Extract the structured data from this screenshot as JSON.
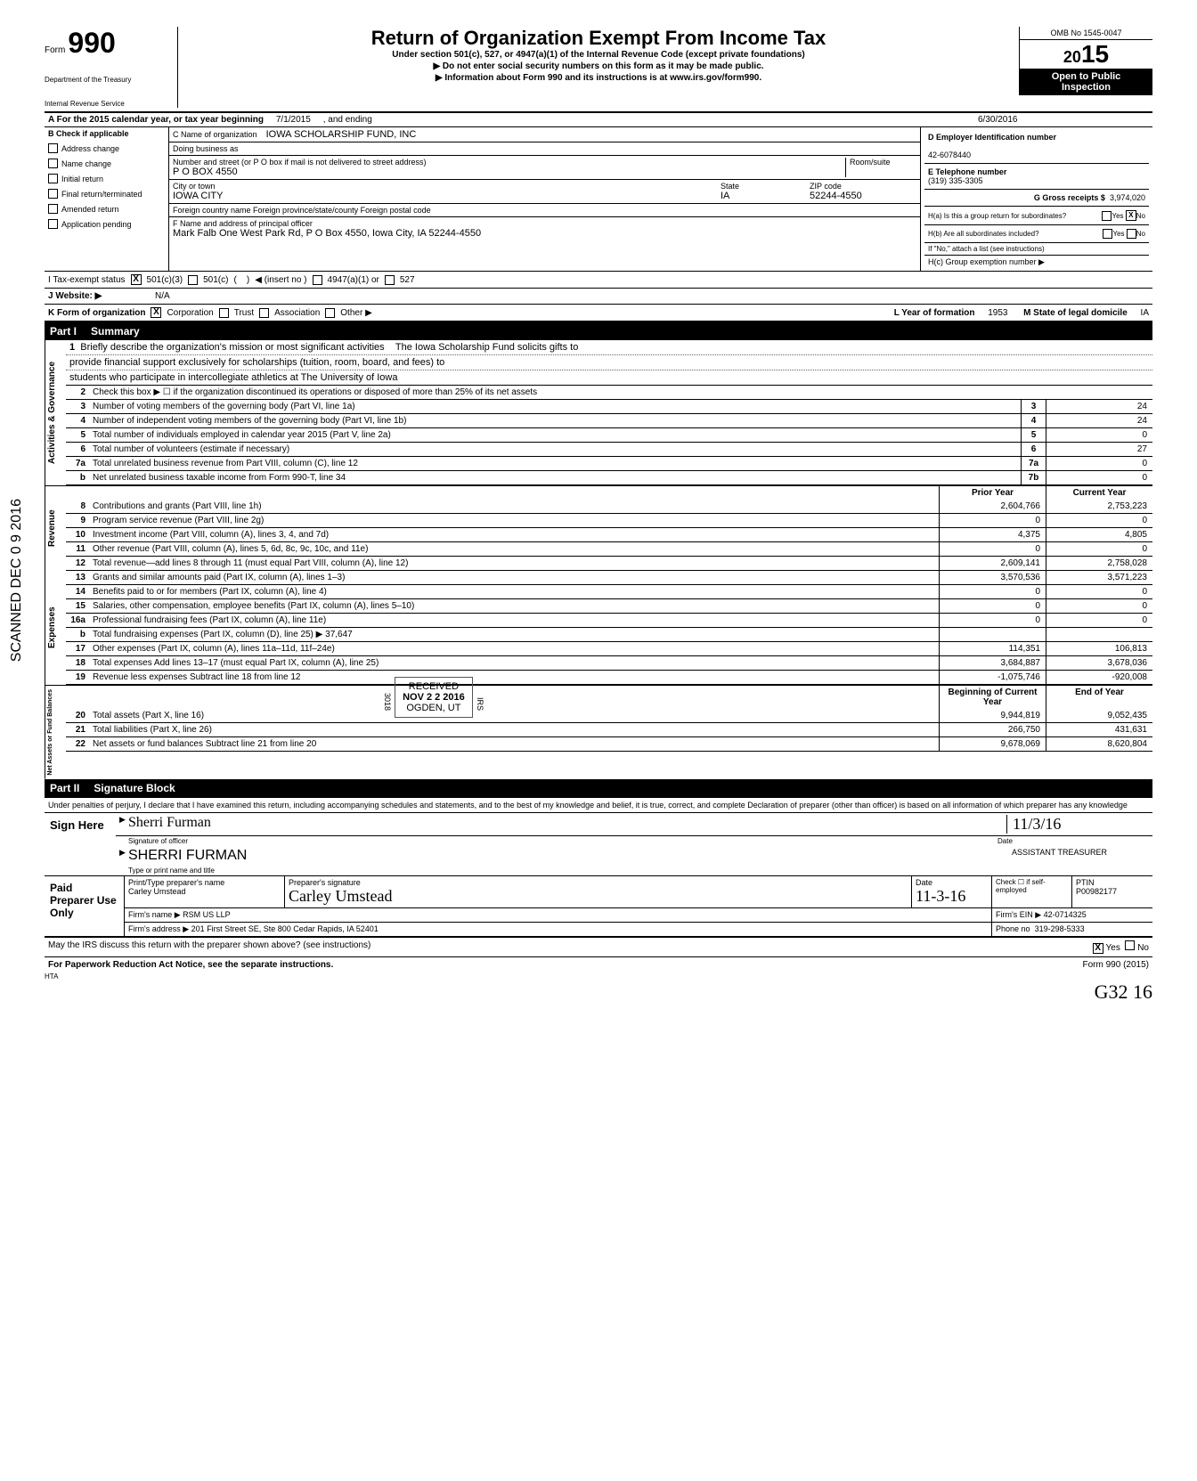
{
  "form": {
    "word": "Form",
    "number": "990",
    "dept1": "Department of the Treasury",
    "dept2": "Internal Revenue Service",
    "title": "Return of Organization Exempt From Income Tax",
    "subtitle": "Under section 501(c), 527, or 4947(a)(1) of the Internal Revenue Code (except private foundations)",
    "warn": "▶  Do not enter social security numbers on this form as it may be made public.",
    "info": "▶  Information about Form 990 and its instructions is at www.irs.gov/form990.",
    "omb": "OMB No 1545-0047",
    "year_prefix": "20",
    "year": "15",
    "open1": "Open to Public",
    "open2": "Inspection"
  },
  "rowA": {
    "label": "A   For the 2015 calendar year, or tax year beginning",
    "begin": "7/1/2015",
    "mid": ", and ending",
    "end": "6/30/2016"
  },
  "checks": {
    "header": "B   Check if applicable",
    "items": [
      "Address change",
      "Name change",
      "Initial return",
      "Final return/terminated",
      "Amended return",
      "Application pending"
    ]
  },
  "org": {
    "c_label": "C  Name of organization",
    "name": "IOWA SCHOLARSHIP FUND, INC",
    "dba_label": "Doing business as",
    "street_label": "Number and street (or P O  box if mail is not delivered to street address)",
    "room_label": "Room/suite",
    "street": "P O  BOX 4550",
    "city_label": "City or town",
    "city": "IOWA CITY",
    "state_label": "State",
    "state": "IA",
    "zip_label": "ZIP code",
    "zip": "52244-4550",
    "foreign_label": "Foreign country name          Foreign province/state/county          Foreign postal code",
    "f_label": "F  Name and address of principal officer",
    "f_value": "Mark Falb One West Park Rd, P O  Box 4550, Iowa City, IA  52244-4550"
  },
  "ein": {
    "d_label": "D   Employer Identification number",
    "d_value": "42-6078440",
    "e_label": "E   Telephone number",
    "e_value": "(319) 335-3305",
    "g_label": "G   Gross receipts $",
    "g_value": "3,974,020",
    "h_a": "H(a) Is this a group return for subordinates?",
    "h_b": "H(b) Are all subordinates included?",
    "h_note": "If \"No,\" attach a list  (see instructions)",
    "h_c": "H(c) Group exemption number ▶",
    "yes": "Yes",
    "no": "No"
  },
  "rowI": {
    "label": "I    Tax-exempt status",
    "opt1": "501(c)(3)",
    "opt2": "501(c)",
    "insert": "◀ (insert no )",
    "opt3": "4947(a)(1) or",
    "opt4": "527"
  },
  "rowJ": {
    "label": "J   Website: ▶",
    "value": "N/A"
  },
  "rowK": {
    "label": "K  Form of organization",
    "opts": [
      "Corporation",
      "Trust",
      "Association",
      "Other ▶"
    ],
    "l_label": "L Year of formation",
    "l_value": "1953",
    "m_label": "M State of legal domicile",
    "m_value": "IA"
  },
  "part1": {
    "num": "Part I",
    "title": "Summary"
  },
  "mission": {
    "num": "1",
    "label": "Briefly describe the organization's mission or most significant activities",
    "line1": "The Iowa Scholarship Fund solicits gifts to",
    "line2": "provide financial support exclusively for scholarships (tuition, room, board, and fees) to",
    "line3": "students who participate in intercollegiate athletics at The University of Iowa"
  },
  "governance": [
    {
      "n": "2",
      "t": "Check this box ▶ ☐  if the organization discontinued its operations or disposed of more than 25% of its net assets",
      "b": "",
      "v": ""
    },
    {
      "n": "3",
      "t": "Number of voting members of the governing body (Part VI, line 1a)",
      "b": "3",
      "v": "24"
    },
    {
      "n": "4",
      "t": "Number of independent voting members of the governing body (Part VI, line 1b)",
      "b": "4",
      "v": "24"
    },
    {
      "n": "5",
      "t": "Total number of individuals employed in calendar year 2015 (Part V, line 2a)",
      "b": "5",
      "v": "0"
    },
    {
      "n": "6",
      "t": "Total number of volunteers (estimate if necessary)",
      "b": "6",
      "v": "27"
    },
    {
      "n": "7a",
      "t": "Total unrelated business revenue from Part VIII, column (C), line 12",
      "b": "7a",
      "v": "0"
    },
    {
      "n": "b",
      "t": "Net unrelated business taxable income from Form 990-T, line 34",
      "b": "7b",
      "v": "0"
    }
  ],
  "yearcols": {
    "prior": "Prior Year",
    "current": "Current Year"
  },
  "revenue": [
    {
      "n": "8",
      "t": "Contributions and grants (Part VIII, line 1h)",
      "p": "2,604,766",
      "c": "2,753,223"
    },
    {
      "n": "9",
      "t": "Program service revenue (Part VIII, line 2g)",
      "p": "0",
      "c": "0"
    },
    {
      "n": "10",
      "t": "Investment income (Part VIII, column (A), lines 3, 4, and 7d)",
      "p": "4,375",
      "c": "4,805"
    },
    {
      "n": "11",
      "t": "Other revenue (Part VIII, column (A), lines 5, 6d, 8c, 9c, 10c, and 11e)",
      "p": "0",
      "c": "0"
    },
    {
      "n": "12",
      "t": "Total revenue—add lines 8 through 11 (must equal Part VIII, column (A), line 12)",
      "p": "2,609,141",
      "c": "2,758,028"
    }
  ],
  "expenses": [
    {
      "n": "13",
      "t": "Grants and similar amounts paid (Part IX, column (A), lines 1–3)",
      "p": "3,570,536",
      "c": "3,571,223"
    },
    {
      "n": "14",
      "t": "Benefits paid to or for members (Part IX, column (A), line 4)",
      "p": "0",
      "c": "0"
    },
    {
      "n": "15",
      "t": "Salaries, other compensation, employee benefits (Part IX, column (A), lines 5–10)",
      "p": "0",
      "c": "0"
    },
    {
      "n": "16a",
      "t": "Professional fundraising fees (Part IX, column (A), line 11e)",
      "p": "0",
      "c": "0"
    },
    {
      "n": "b",
      "t": "Total fundraising expenses (Part IX, column (D), line 25) ▶               37,647",
      "p": "",
      "c": ""
    },
    {
      "n": "17",
      "t": "Other expenses (Part IX, column (A), lines 11a–11d, 11f–24e)",
      "p": "114,351",
      "c": "106,813"
    },
    {
      "n": "18",
      "t": "Total expenses  Add lines 13–17 (must equal Part IX, column (A), line 25)",
      "p": "3,684,887",
      "c": "3,678,036"
    },
    {
      "n": "19",
      "t": "Revenue less expenses  Subtract line 18 from line 12",
      "p": "-1,075,746",
      "c": "-920,008"
    }
  ],
  "yearcols2": {
    "begin": "Beginning of Current Year",
    "end": "End of Year"
  },
  "netassets": [
    {
      "n": "20",
      "t": "Total assets (Part X, line 16)",
      "p": "9,944,819",
      "c": "9,052,435"
    },
    {
      "n": "21",
      "t": "Total liabilities (Part X, line 26)",
      "p": "266,750",
      "c": "431,631"
    },
    {
      "n": "22",
      "t": "Net assets or fund balances  Subtract line 21 from line 20",
      "p": "9,678,069",
      "c": "8,620,804"
    }
  ],
  "part2": {
    "num": "Part II",
    "title": "Signature Block"
  },
  "sig": {
    "intro": "Under penalties of perjury, I declare that I have examined this return, including accompanying schedules and statements, and to the best of my knowledge and belief, it is true, correct, and complete  Declaration of preparer (other than officer) is based on all information of which preparer has any knowledge",
    "here": "Sign Here",
    "sig_label": "Signature of officer",
    "date_label": "Date",
    "sig_date": "11/3/16",
    "name": "SHERRI FURMAN",
    "title": "ASSISTANT TREASURER",
    "type_label": "Type or print name and title"
  },
  "prep": {
    "label": "Paid Preparer Use Only",
    "name_label": "Print/Type preparer's name",
    "name": "Carley Umstead",
    "sig_label": "Preparer's signature",
    "sig": "Carley Umstead",
    "date_label": "Date",
    "date": "11-3-16",
    "check_label": "Check ☐ if self-employed",
    "ptin_label": "PTIN",
    "ptin": "P00982177",
    "firm_label": "Firm's name  ▶",
    "firm": "RSM US LLP",
    "ein_label": "Firm's EIN ▶",
    "ein": "42-0714325",
    "addr_label": "Firm's address  ▶",
    "addr": "201 First Street SE, Ste 800  Cedar Rapids, IA 52401",
    "phone_label": "Phone no",
    "phone": "319-298-5333"
  },
  "footer": {
    "discuss": "May the IRS discuss this return with the preparer shown above? (see instructions)",
    "yes": "Yes",
    "no": "No",
    "paperwork": "For Paperwork Reduction Act Notice, see the separate instructions.",
    "hta": "HTA",
    "form": "Form 990 (2015)"
  },
  "stamps": {
    "scanned": "SCANNED DEC 0 9  2016",
    "received_top": "RECEIVED",
    "received_date": "NOV 2 2 2016",
    "received_bot": "OGDEN, UT",
    "corner": "G32 16",
    "stamp_3018": "3018",
    "stamp_irs": "IRS"
  }
}
